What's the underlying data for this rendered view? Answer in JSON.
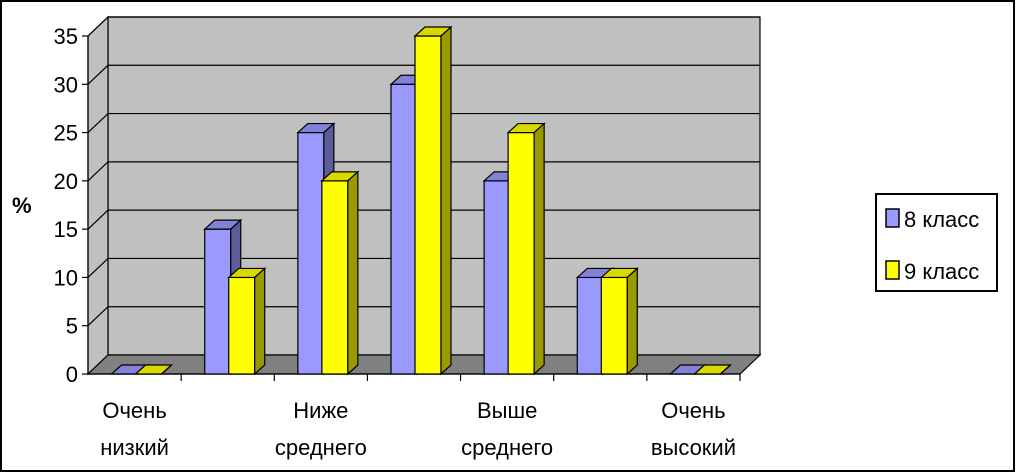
{
  "colors": {
    "series_8": "#9999ff",
    "series_9": "#ffff00",
    "wall": "#c0c0c0",
    "floor": "#808080",
    "grid": "#000000",
    "frame": "#000000",
    "legend_border": "#000000"
  },
  "chart_data": {
    "type": "bar",
    "title": "",
    "xlabel": "",
    "ylabel": "%",
    "ylim": [
      0,
      35
    ],
    "yticks": [
      0,
      5,
      10,
      15,
      20,
      25,
      30,
      35
    ],
    "categories": [
      [
        "Очень",
        "низкий"
      ],
      [
        "",
        ""
      ],
      [
        "Ниже",
        "среднего"
      ],
      [
        "",
        ""
      ],
      [
        "Выше",
        "среднего"
      ],
      [
        "",
        ""
      ],
      [
        "Очень",
        "высокий"
      ]
    ],
    "series": [
      {
        "name": "8 класс",
        "values": [
          0,
          15,
          25,
          30,
          20,
          10,
          0
        ]
      },
      {
        "name": "9 класс",
        "values": [
          0,
          10,
          20,
          35,
          25,
          10,
          0
        ]
      }
    ],
    "grid": true,
    "legend": "right",
    "style": "3d-clustered-column"
  }
}
